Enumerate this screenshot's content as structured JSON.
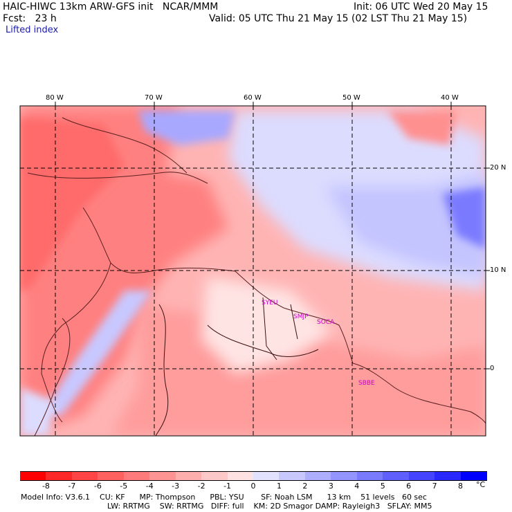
{
  "header": {
    "model_line": "HAIC-HIWC 13km ARW-GFS init   NCAR/MMM",
    "init_line": "Init: 06 UTC Wed 20 May 15",
    "fcst_line": "Fcst:   23 h",
    "valid_line": "Valid: 05 UTC Thu 21 May 15 (02 LST Thu 21 May 15)",
    "field_name": "Lifted index"
  },
  "axes": {
    "lon_labels": [
      "80 W",
      "70 W",
      "60 W",
      "50 W",
      "40 W"
    ],
    "lat_labels": [
      "20 N",
      "10 N",
      "0"
    ]
  },
  "stations": [
    "SYEU",
    "SMJP",
    "SOCA",
    "SBBE"
  ],
  "colorbar": {
    "ticks": [
      "-8",
      "-7",
      "-6",
      "-5",
      "-4",
      "-3",
      "-2",
      "-1",
      "0",
      "1",
      "2",
      "3",
      "4",
      "5",
      "6",
      "7",
      "8"
    ],
    "unit": "°C",
    "colors": [
      "#ff0000",
      "#ff2828",
      "#ff4545",
      "#ff6060",
      "#ff7a7a",
      "#ff9494",
      "#ffaeae",
      "#ffc8c8",
      "#ffe2e2",
      "#e2e2ff",
      "#c8c8ff",
      "#aeaeff",
      "#9494ff",
      "#7a7aff",
      "#6060ff",
      "#4545ff",
      "#2828ff",
      "#0000ff"
    ]
  },
  "footer": {
    "line1": "Model Info: V3.6.1    CU: KF      MP: Thompson      PBL: YSU       SF: Noah LSM      13 km    51 levels   60 sec",
    "line2": "LW: RRTMG    SW: RRTMG   DIFF: full    KM: 2D Smagor DAMP: Rayleigh3   SFLAY: MM5"
  }
}
